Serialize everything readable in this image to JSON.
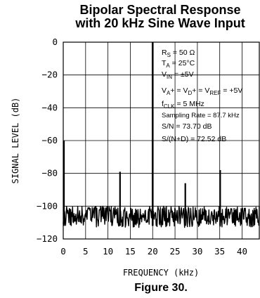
{
  "chart_data": {
    "type": "line",
    "title": [
      "Bipolar Spectral Response",
      "with 20 kHz Sine Wave Input"
    ],
    "xlabel": "FREQUENCY (kHz)",
    "ylabel": "SIGNAL LEVEL (dB)",
    "xlim": [
      0,
      43.85
    ],
    "ylim": [
      -120,
      0
    ],
    "xticks": [
      0,
      5,
      10,
      15,
      20,
      25,
      30,
      35,
      40
    ],
    "yticks": [
      0,
      -20,
      -40,
      -60,
      -80,
      -100,
      -120
    ],
    "grid": true,
    "series": [
      {
        "values_note": "noise floor with spectral spurs",
        "fundamental": {
          "x": 20,
          "y": 0
        },
        "spurs": [
          {
            "x": 0,
            "y": -60
          },
          {
            "x": 12.7,
            "y": -79
          },
          {
            "x": 27.3,
            "y": -86
          },
          {
            "x": 35.1,
            "y": -78
          }
        ],
        "noise_floor": [
          -120,
          -100
        ]
      }
    ],
    "annotations": {
      "rs": "R_S = 50 Ω",
      "ta": "T_A = 25°C",
      "vin": "V_IN = ±5V",
      "supplies": "V_A+ = V_D+ = V_REF = +5V",
      "fclk": "f_CLK = 5 MHz",
      "sampling": "Sampling Rate = 87.7 kHz",
      "sn": "S/N = 73.70 dB",
      "snd": "S/(N+D) = 72.52 dB"
    }
  },
  "caption": "Figure 30."
}
